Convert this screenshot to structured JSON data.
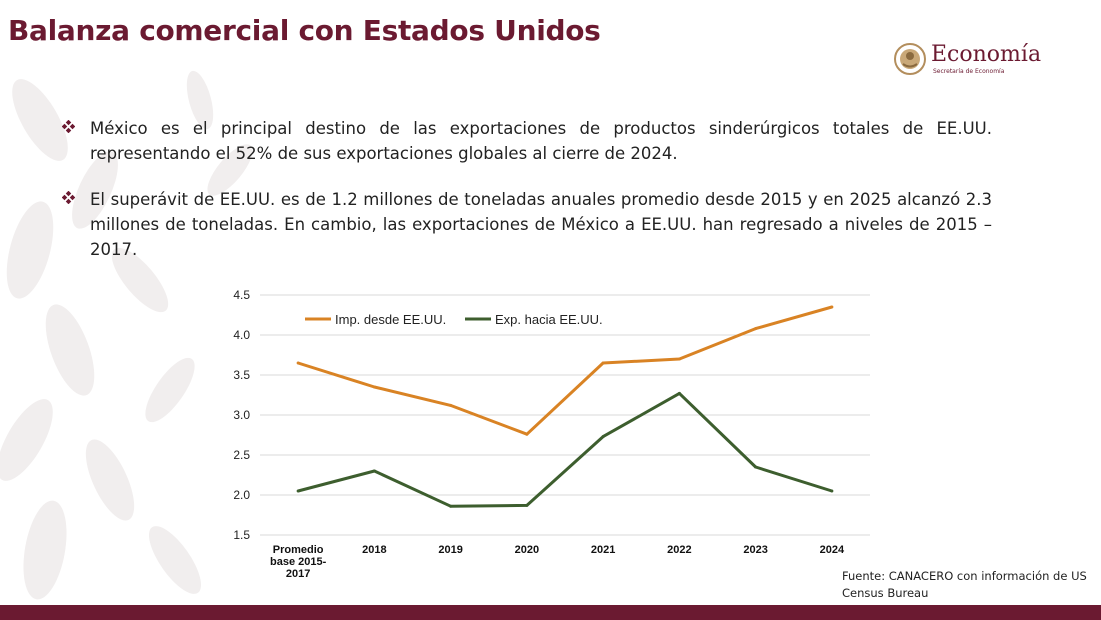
{
  "slide": {
    "title": "Balanza comercial con Estados Unidos",
    "logo_text": "Economía",
    "logo_subtext": "Secretaría de Economía",
    "source": "Fuente:  CANACERO con información de US Census Bureau"
  },
  "bullets": [
    {
      "text": "México es el principal destino de las exportaciones de productos sinderúrgicos totales de EE.UU. representando el 52% de sus exportaciones globales al cierre de 2024."
    },
    {
      "text": "El superávit de EE.UU. es de 1.2 millones de toneladas anuales promedio desde 2015 y en 2025 alcanzó 2.3 millones de toneladas. En cambio, las exportaciones de México a EE.UU. han regresado a niveles de 2015 – 2017."
    }
  ],
  "colors": {
    "brand": "#6b1a31",
    "imports": "#d98324",
    "exports": "#3d5e2e",
    "grid": "#d9d9d9"
  },
  "chart_data": {
    "type": "line",
    "title": "",
    "xlabel": "",
    "ylabel": "",
    "categories": [
      [
        "Promedio",
        "base 2015-",
        "2017"
      ],
      [
        "2018"
      ],
      [
        "2019"
      ],
      [
        "2020"
      ],
      [
        "2021"
      ],
      [
        "2022"
      ],
      [
        "2023"
      ],
      [
        "2024"
      ]
    ],
    "series": [
      {
        "name": "Imp. desde EE.UU.",
        "color": "#d98324",
        "values": [
          3.65,
          3.35,
          3.12,
          2.76,
          3.65,
          3.7,
          4.08,
          4.35
        ]
      },
      {
        "name": "Exp. hacia EE.UU.",
        "color": "#3d5e2e",
        "values": [
          2.05,
          2.3,
          1.86,
          1.87,
          2.73,
          3.27,
          2.35,
          2.05
        ]
      }
    ],
    "ylim": [
      1.5,
      4.5
    ],
    "yticks": [
      "1.5",
      "2.0",
      "2.5",
      "3.0",
      "3.5",
      "4.0",
      "4.5"
    ],
    "grid": true,
    "legend": "top-left"
  }
}
